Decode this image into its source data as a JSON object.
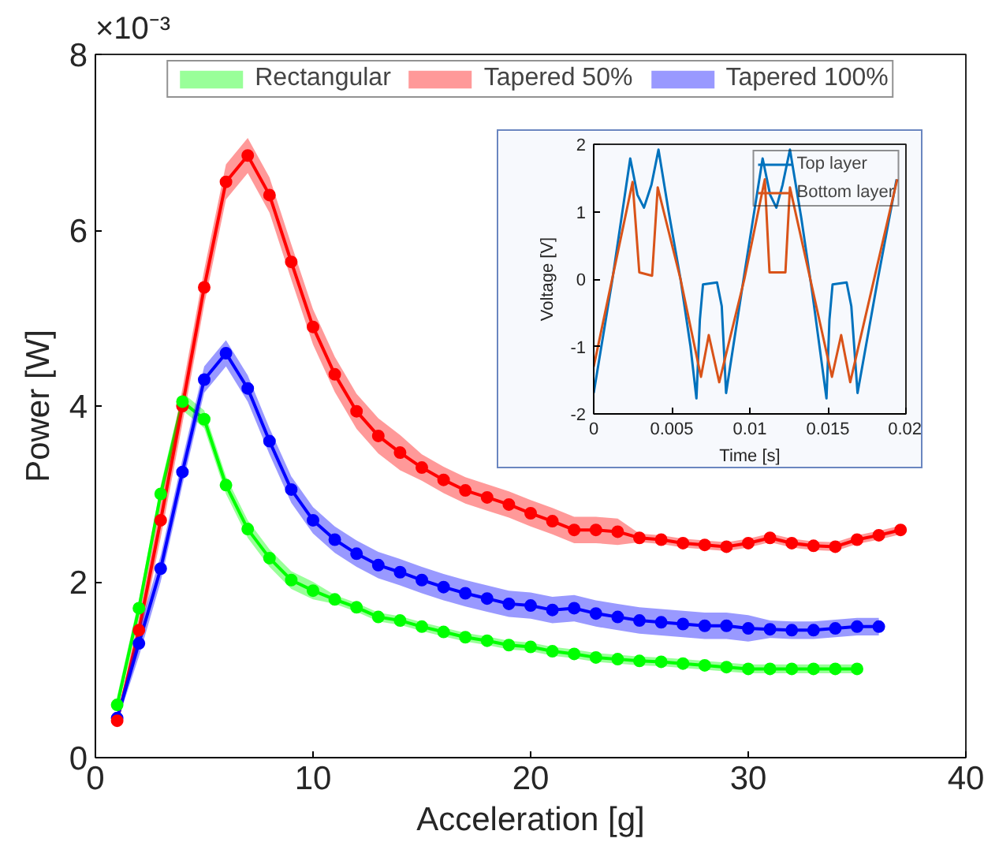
{
  "chart_data": [
    {
      "type": "line",
      "xlabel": "Acceleration [g]",
      "ylabel": "Power [W]",
      "annotations": [
        "×10⁻³"
      ],
      "xlim": [
        0,
        40
      ],
      "ylim": [
        0,
        8
      ],
      "xticks": [
        0,
        10,
        20,
        30,
        40
      ],
      "yticks": [
        0,
        2,
        4,
        6,
        8
      ],
      "grid": false,
      "legend": "top",
      "marker": "circle",
      "line_style": "solid",
      "series": [
        {
          "name": "Rectangular",
          "color": "#00ff00",
          "x": [
            1,
            2,
            3,
            4,
            5,
            6,
            7,
            8,
            9,
            10,
            11,
            12,
            13,
            14,
            15,
            16,
            17,
            18,
            19,
            20,
            21,
            22,
            23,
            24,
            25,
            26,
            27,
            28,
            29,
            30,
            31,
            32,
            33,
            34,
            35
          ],
          "values": [
            0.6,
            1.7,
            3.0,
            4.05,
            3.85,
            3.1,
            2.6,
            2.27,
            2.02,
            1.9,
            1.8,
            1.71,
            1.6,
            1.56,
            1.49,
            1.43,
            1.37,
            1.33,
            1.28,
            1.26,
            1.21,
            1.18,
            1.14,
            1.12,
            1.1,
            1.09,
            1.07,
            1.05,
            1.03,
            1.01,
            1.01,
            1.01,
            1.01,
            1.01,
            1.01
          ],
          "lower": [
            0.5,
            1.6,
            2.9,
            3.95,
            3.75,
            3.0,
            2.5,
            2.17,
            1.92,
            1.8,
            1.75,
            1.66,
            1.55,
            1.51,
            1.44,
            1.38,
            1.32,
            1.28,
            1.23,
            1.21,
            1.16,
            1.13,
            1.09,
            1.07,
            1.05,
            1.04,
            1.02,
            1.0,
            0.98,
            0.96,
            0.96,
            0.96,
            0.96,
            0.96,
            0.96
          ],
          "upper": [
            0.7,
            1.8,
            3.1,
            4.15,
            3.95,
            3.2,
            2.7,
            2.37,
            2.12,
            2.0,
            1.85,
            1.76,
            1.65,
            1.61,
            1.54,
            1.48,
            1.42,
            1.38,
            1.33,
            1.31,
            1.26,
            1.23,
            1.19,
            1.17,
            1.15,
            1.14,
            1.12,
            1.1,
            1.08,
            1.06,
            1.06,
            1.06,
            1.06,
            1.06,
            1.06
          ]
        },
        {
          "name": "Tapered 50%",
          "color": "#ff0000",
          "x": [
            1,
            2,
            3,
            4,
            5,
            6,
            7,
            8,
            9,
            10,
            11,
            12,
            13,
            14,
            15,
            16,
            17,
            18,
            19,
            20,
            21,
            22,
            23,
            24,
            25,
            26,
            27,
            28,
            29,
            30,
            31,
            32,
            33,
            34,
            35,
            36,
            37
          ],
          "values": [
            0.42,
            1.45,
            2.7,
            4.0,
            5.35,
            6.55,
            6.85,
            6.4,
            5.64,
            4.9,
            4.36,
            3.94,
            3.66,
            3.47,
            3.3,
            3.16,
            3.04,
            2.96,
            2.88,
            2.78,
            2.69,
            2.59,
            2.59,
            2.57,
            2.5,
            2.48,
            2.44,
            2.42,
            2.4,
            2.44,
            2.5,
            2.44,
            2.41,
            2.4,
            2.48,
            2.53,
            2.59
          ],
          "lower": [
            0.37,
            1.3,
            2.5,
            3.8,
            5.15,
            6.35,
            6.65,
            6.2,
            5.44,
            4.7,
            4.16,
            3.74,
            3.46,
            3.27,
            3.15,
            3.01,
            2.89,
            2.81,
            2.73,
            2.63,
            2.54,
            2.44,
            2.44,
            2.42,
            2.45,
            2.43,
            2.39,
            2.37,
            2.35,
            2.39,
            2.45,
            2.39,
            2.36,
            2.35,
            2.43,
            2.48,
            2.54
          ],
          "upper": [
            0.47,
            1.6,
            2.9,
            4.2,
            5.55,
            6.75,
            7.05,
            6.6,
            5.84,
            5.1,
            4.56,
            4.14,
            3.86,
            3.67,
            3.45,
            3.31,
            3.19,
            3.11,
            3.03,
            2.93,
            2.84,
            2.74,
            2.74,
            2.72,
            2.55,
            2.53,
            2.49,
            2.47,
            2.45,
            2.49,
            2.55,
            2.49,
            2.46,
            2.45,
            2.53,
            2.58,
            2.64
          ]
        },
        {
          "name": "Tapered 100%",
          "color": "#0000ff",
          "x": [
            1,
            2,
            3,
            4,
            5,
            6,
            7,
            8,
            9,
            10,
            11,
            12,
            13,
            14,
            15,
            16,
            17,
            18,
            19,
            20,
            21,
            22,
            23,
            24,
            25,
            26,
            27,
            28,
            29,
            30,
            31,
            32,
            33,
            34,
            35,
            36
          ],
          "values": [
            0.45,
            1.3,
            2.15,
            3.25,
            4.3,
            4.6,
            4.2,
            3.6,
            3.05,
            2.7,
            2.48,
            2.32,
            2.19,
            2.11,
            2.02,
            1.94,
            1.87,
            1.81,
            1.75,
            1.73,
            1.68,
            1.7,
            1.64,
            1.6,
            1.56,
            1.54,
            1.52,
            1.5,
            1.5,
            1.47,
            1.46,
            1.45,
            1.45,
            1.47,
            1.49,
            1.49
          ],
          "lower": [
            0.4,
            1.15,
            2.0,
            3.1,
            4.15,
            4.45,
            4.05,
            3.45,
            2.9,
            2.55,
            2.33,
            2.17,
            2.04,
            1.96,
            1.87,
            1.79,
            1.72,
            1.66,
            1.6,
            1.58,
            1.53,
            1.55,
            1.49,
            1.45,
            1.41,
            1.39,
            1.37,
            1.35,
            1.35,
            1.32,
            1.36,
            1.35,
            1.35,
            1.37,
            1.39,
            1.39
          ],
          "upper": [
            0.5,
            1.45,
            2.3,
            3.4,
            4.45,
            4.75,
            4.35,
            3.75,
            3.2,
            2.85,
            2.63,
            2.47,
            2.34,
            2.26,
            2.17,
            2.09,
            2.02,
            1.96,
            1.9,
            1.88,
            1.83,
            1.85,
            1.79,
            1.75,
            1.71,
            1.69,
            1.67,
            1.65,
            1.65,
            1.62,
            1.56,
            1.55,
            1.55,
            1.57,
            1.59,
            1.59
          ]
        }
      ]
    },
    {
      "type": "line",
      "xlabel": "Time [s]",
      "ylabel": "Voltage [V]",
      "xlim": [
        0,
        0.02
      ],
      "ylim": [
        -2,
        2
      ],
      "xticks": [
        0,
        0.005,
        0.01,
        0.015,
        0.02
      ],
      "yticks": [
        -2,
        -1,
        0,
        1,
        2
      ],
      "grid": false,
      "legend": "top right",
      "marker": "none",
      "line_style": "solid",
      "series": [
        {
          "name": "Top layer",
          "color": "#0072bd",
          "x": [
            0,
            0.0012,
            0.00234,
            0.0028,
            0.00322,
            0.0037,
            0.00415,
            0.0048,
            0.00556,
            0.0062,
            0.00658,
            0.0068,
            0.007,
            0.0079,
            0.0082,
            0.00848,
            0.0096,
            0.01082,
            0.0113,
            0.0117,
            0.0121,
            0.01257,
            0.0133,
            0.014,
            0.01491,
            0.0151,
            0.0153,
            0.0162,
            0.0165,
            0.0169,
            0.0182,
            0.0194
          ],
          "values": [
            -1.69,
            0.0,
            1.79,
            1.25,
            1.06,
            1.4,
            1.92,
            1.0,
            0.0,
            -1.0,
            -1.77,
            -0.6,
            -0.08,
            -0.05,
            -0.4,
            -1.69,
            0.0,
            1.79,
            1.25,
            1.06,
            1.4,
            1.92,
            0.9,
            -0.2,
            -1.77,
            -0.6,
            -0.08,
            -0.05,
            -0.4,
            -1.69,
            0.0,
            1.48
          ]
        },
        {
          "name": "Bottom layer",
          "color": "#d95319",
          "x": [
            0,
            0.00249,
            0.00292,
            0.00374,
            0.0041,
            0.00556,
            0.00687,
            0.00737,
            0.00804,
            0.00965,
            0.01096,
            0.01126,
            0.01228,
            0.01257,
            0.01526,
            0.01585,
            0.01643,
            0.01944
          ],
          "values": [
            -1.3,
            1.44,
            0.1,
            0.05,
            1.36,
            0.0,
            -1.45,
            -0.83,
            -1.53,
            0.0,
            1.48,
            0.1,
            0.1,
            1.36,
            -1.45,
            -0.83,
            -1.53,
            1.48
          ]
        }
      ]
    }
  ]
}
